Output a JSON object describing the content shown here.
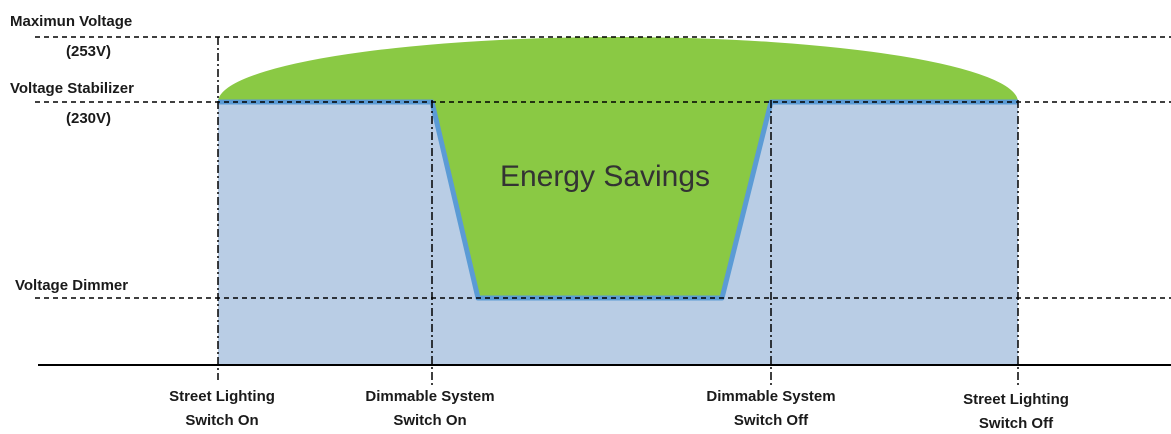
{
  "y_labels": [
    {
      "lines": [
        "Maximun Voltage",
        "(253V)"
      ]
    },
    {
      "lines": [
        "Voltage Stabilizer",
        "(230V)"
      ]
    },
    {
      "lines": [
        "Voltage Dimmer"
      ]
    }
  ],
  "region_label": "Energy Savings",
  "x_labels": [
    {
      "lines": [
        "Street Lighting",
        "Switch On"
      ]
    },
    {
      "lines": [
        "Dimmable System",
        "Switch On"
      ]
    },
    {
      "lines": [
        "Dimmable System",
        "Switch Off"
      ]
    },
    {
      "lines": [
        "Street Lighting",
        "Switch Off"
      ]
    }
  ]
}
